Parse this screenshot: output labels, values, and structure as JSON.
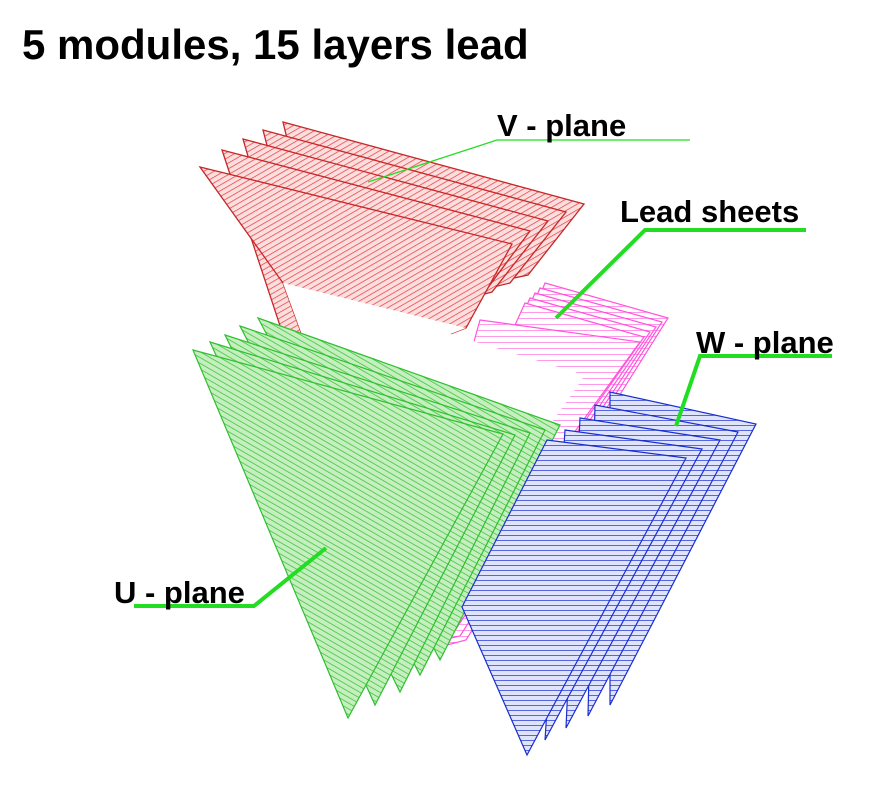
{
  "title": "5 modules, 15 layers lead",
  "labels": {
    "v_plane": "V - plane",
    "lead_sheets": "Lead sheets",
    "w_plane": "W - plane",
    "u_plane": "U - plane"
  },
  "colors": {
    "v_plane": "#e8363c",
    "u_plane": "#2fbf2f",
    "w_plane": "#1a2fd0",
    "lead_sheets": "#ff55dd",
    "leader": "#22dd22"
  }
}
